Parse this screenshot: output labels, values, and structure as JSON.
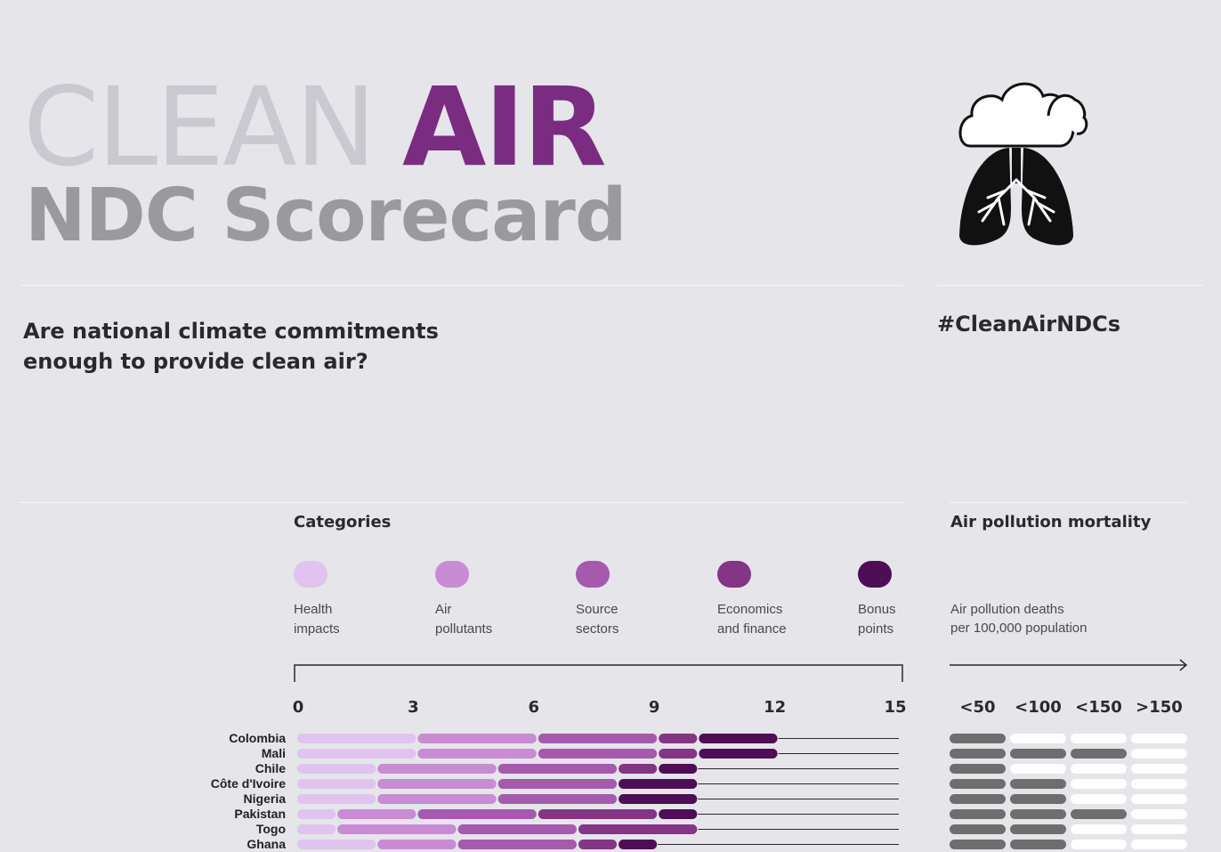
{
  "logo": {
    "clean": "CLEAN",
    "air": "AIR",
    "subtitle": "NDC Scorecard"
  },
  "question": "Are national climate commitments enough to provide clean air?",
  "hashtag": "#CleanAirNDCs",
  "icon": "cloud-lungs-icon",
  "categories_title": "Categories",
  "mortality_title": "Air pollution mortality",
  "mortality_desc": "Air pollution deaths\nper 100,000 population",
  "colors": {
    "background": "#e5e5ea",
    "health": "#e0c3ef",
    "pollutants": "#c98bd4",
    "sectors": "#a55aae",
    "finance": "#843585",
    "bonus": "#4f0d55",
    "mortality_on": "#6e6e6e",
    "mortality_off": "#ffffff"
  },
  "chart_data": [
    {
      "type": "bar",
      "orientation": "horizontal",
      "stacked": true,
      "categories": [
        "Colombia",
        "Mali",
        "Chile",
        "Côte d'Ivoire",
        "Nigeria",
        "Pakistan",
        "Togo",
        "Ghana"
      ],
      "series": [
        {
          "name": "Health impacts",
          "values": [
            3,
            3,
            2,
            2,
            2,
            1,
            1,
            2
          ]
        },
        {
          "name": "Air pollutants",
          "values": [
            3,
            3,
            3,
            3,
            3,
            2,
            3,
            2
          ]
        },
        {
          "name": "Source sectors",
          "values": [
            3,
            3,
            3,
            3,
            3,
            3,
            3,
            3
          ]
        },
        {
          "name": "Economics and finance",
          "values": [
            1,
            1,
            1,
            0,
            0,
            3,
            3,
            1
          ]
        },
        {
          "name": "Bonus points",
          "values": [
            2,
            2,
            1,
            2,
            2,
            1,
            0,
            1
          ]
        }
      ],
      "xticks": [
        0,
        3,
        6,
        9,
        12,
        15
      ],
      "xlim": [
        0,
        15
      ]
    },
    {
      "type": "heatmap",
      "title": "Air pollution mortality",
      "columns": [
        "<50",
        "<100",
        "<150",
        ">150"
      ],
      "rows": [
        "Colombia",
        "Mali",
        "Chile",
        "Côte d'Ivoire",
        "Nigeria",
        "Pakistan",
        "Togo",
        "Ghana"
      ],
      "levels": [
        1,
        3,
        1,
        2,
        2,
        3,
        2,
        2
      ]
    }
  ]
}
